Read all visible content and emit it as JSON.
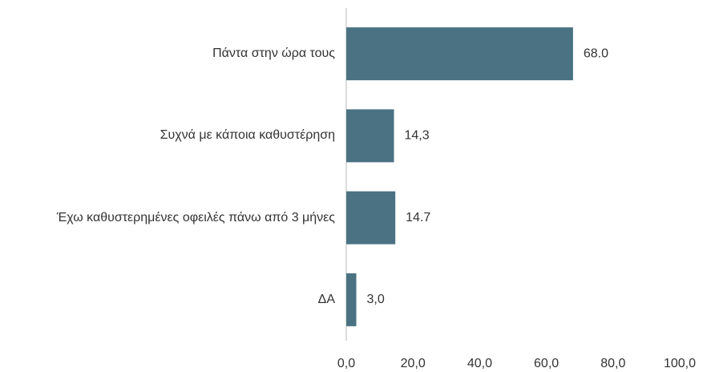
{
  "chart_data": {
    "type": "bar",
    "orientation": "horizontal",
    "categories": [
      "Πάντα στην ώρα τους",
      "Συχνά με κάποια καθυστέρηση",
      "Έχω καθυστερημένες οφειλές πάνω από 3 μήνες",
      "ΔΑ"
    ],
    "values": [
      68.0,
      14.3,
      14.7,
      3.0
    ],
    "value_labels": [
      "68.0",
      "14,3",
      "14.7",
      "3,0"
    ],
    "color": "#4a7282",
    "xlim": [
      0,
      100
    ],
    "xticks": [
      {
        "value": 0,
        "label": "0,0"
      },
      {
        "value": 20,
        "label": "20,0"
      },
      {
        "value": 40,
        "label": "40,0"
      },
      {
        "value": 60,
        "label": "60,0"
      },
      {
        "value": 80,
        "label": "80,0"
      },
      {
        "value": 100,
        "label": "100,0"
      }
    ],
    "grid": false
  }
}
